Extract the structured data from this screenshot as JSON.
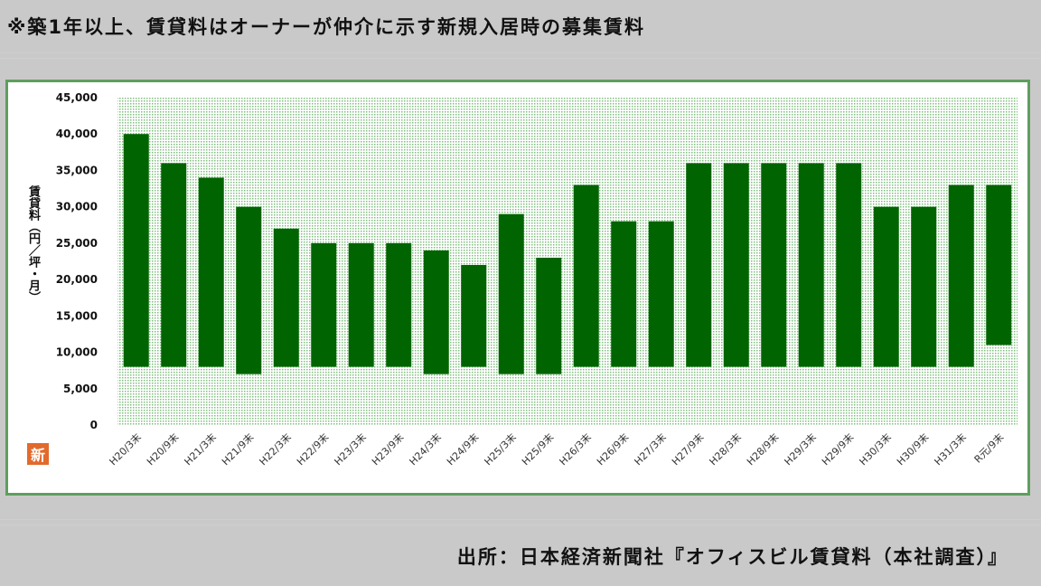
{
  "header": {
    "note": "※築1年以上、賃貸料はオーナーが仲介に示す新規入居時の募集賃料"
  },
  "source": {
    "text": "出所：日本経済新聞社『オフィスビル賃貸料（本社調査）』"
  },
  "logo": {
    "text": "新",
    "color": "#e26a2c"
  },
  "colors": {
    "bar": "#006400",
    "plot_dots": "#7fbf7f",
    "frame": "#5f9e5f"
  },
  "chart_data": {
    "type": "bar",
    "subtype": "floating-range",
    "ylabel": "賃貸料（円／坪・月）",
    "ylim": [
      0,
      45000
    ],
    "yticks": [
      "0",
      "5,000",
      "10,000",
      "15,000",
      "20,000",
      "25,000",
      "30,000",
      "35,000",
      "40,000",
      "45,000"
    ],
    "grid": false,
    "categories": [
      "H20/3末",
      "H20/9末",
      "H21/3末",
      "H21/9末",
      "H22/3末",
      "H22/9末",
      "H23/3末",
      "H23/9末",
      "H24/3末",
      "H24/9末",
      "H25/3末",
      "H25/9末",
      "H26/3末",
      "H26/9末",
      "H27/3末",
      "H27/9末",
      "H28/3末",
      "H28/9末",
      "H29/3末",
      "H29/9末",
      "H30/3末",
      "H30/9末",
      "H31/3末",
      "R元/9末"
    ],
    "series": [
      {
        "low": [
          8000,
          8000,
          8000,
          7000,
          8000,
          8000,
          8000,
          8000,
          7000,
          8000,
          7000,
          7000,
          8000,
          8000,
          8000,
          8000,
          8000,
          8000,
          8000,
          8000,
          8000,
          8000,
          8000,
          11000
        ],
        "high": [
          40000,
          36000,
          34000,
          30000,
          27000,
          25000,
          25000,
          25000,
          24000,
          22000,
          29000,
          23000,
          33000,
          28000,
          28000,
          36000,
          36000,
          36000,
          36000,
          36000,
          30000,
          30000,
          33000,
          33000
        ]
      }
    ]
  }
}
